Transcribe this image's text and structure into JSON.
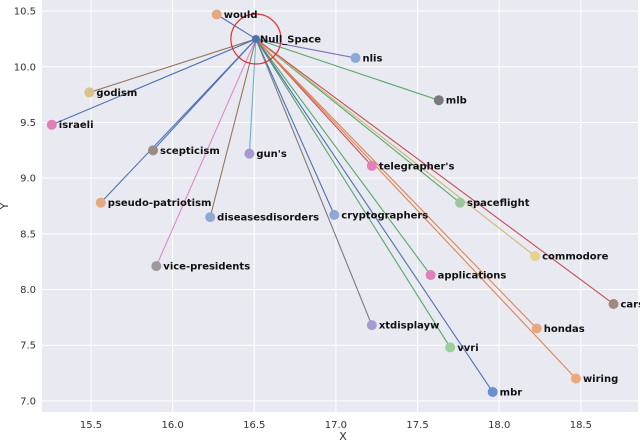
{
  "chart_data": {
    "type": "scatter",
    "title": "",
    "xlabel": "X",
    "ylabel": "Y",
    "xlim": [
      15.2,
      18.85
    ],
    "ylim": [
      6.9,
      10.6
    ],
    "xticks": [
      "15.5",
      "16.0",
      "16.5",
      "17.0",
      "17.5",
      "18.0",
      "18.5"
    ],
    "yticks": [
      "7.0",
      "7.5",
      "8.0",
      "8.5",
      "9.0",
      "9.5",
      "10.0",
      "10.5"
    ],
    "grid": true,
    "center": {
      "label": "Null_Space",
      "x": 16.51,
      "y": 10.25,
      "color": "#4c72b0",
      "circle_color": "#e03030"
    },
    "points": [
      {
        "label": "would",
        "x": 16.27,
        "y": 10.47,
        "color": "#e8a77d",
        "line_color": "#4c72b0"
      },
      {
        "label": "nlis",
        "x": 17.12,
        "y": 10.08,
        "color": "#8fa9d6",
        "line_color": "#8172b3"
      },
      {
        "label": "godism",
        "x": 15.49,
        "y": 9.77,
        "color": "#d8c488",
        "line_color": "#937860"
      },
      {
        "label": "mlb",
        "x": 17.63,
        "y": 9.7,
        "color": "#7a7a7a",
        "line_color": "#55a868"
      },
      {
        "label": "israeli",
        "x": 15.26,
        "y": 9.48,
        "color": "#e17fba",
        "line_color": "#4c72b0"
      },
      {
        "label": "scepticism",
        "x": 15.88,
        "y": 9.25,
        "color": "#9a8c80",
        "line_color": "#4c72b0"
      },
      {
        "label": "gun's",
        "x": 16.47,
        "y": 9.22,
        "color": "#a59ad1",
        "line_color": "#64b5cd"
      },
      {
        "label": "telegrapher's",
        "x": 17.22,
        "y": 9.11,
        "color": "#e17fba",
        "line_color": "#c44e52"
      },
      {
        "label": "pseudo-patriotism",
        "x": 15.56,
        "y": 8.78,
        "color": "#e8a77d",
        "line_color": "#4c72b0"
      },
      {
        "label": "spaceflight",
        "x": 17.76,
        "y": 8.78,
        "color": "#9bc89b",
        "line_color": "#55a868"
      },
      {
        "label": "diseasesdisorders",
        "x": 16.23,
        "y": 8.65,
        "color": "#8fa9d6",
        "line_color": "#937860"
      },
      {
        "label": "cryptographers",
        "x": 16.99,
        "y": 8.67,
        "color": "#8fa9d6",
        "line_color": "#4c72b0"
      },
      {
        "label": "commodore",
        "x": 18.22,
        "y": 8.3,
        "color": "#e6d28c",
        "line_color": "#ccb974"
      },
      {
        "label": "vice-presidents",
        "x": 15.9,
        "y": 8.21,
        "color": "#9a9a9a",
        "line_color": "#da8bc3"
      },
      {
        "label": "applications",
        "x": 17.58,
        "y": 8.13,
        "color": "#e17fba",
        "line_color": "#55a868"
      },
      {
        "label": "cars",
        "x": 18.7,
        "y": 7.87,
        "color": "#a08a80",
        "line_color": "#c44e52"
      },
      {
        "label": "xtdisplayw",
        "x": 17.22,
        "y": 7.68,
        "color": "#a59ad1",
        "line_color": "#7a7a7a"
      },
      {
        "label": "hondas",
        "x": 18.23,
        "y": 7.65,
        "color": "#e8a77d",
        "line_color": "#dd8452"
      },
      {
        "label": "vvri",
        "x": 17.7,
        "y": 7.48,
        "color": "#9bd09b",
        "line_color": "#55a868"
      },
      {
        "label": "wiring",
        "x": 18.47,
        "y": 7.2,
        "color": "#f0a777",
        "line_color": "#dd8452"
      },
      {
        "label": "mbr",
        "x": 17.96,
        "y": 7.08,
        "color": "#6a8fd0",
        "line_color": "#4c72b0"
      }
    ]
  }
}
